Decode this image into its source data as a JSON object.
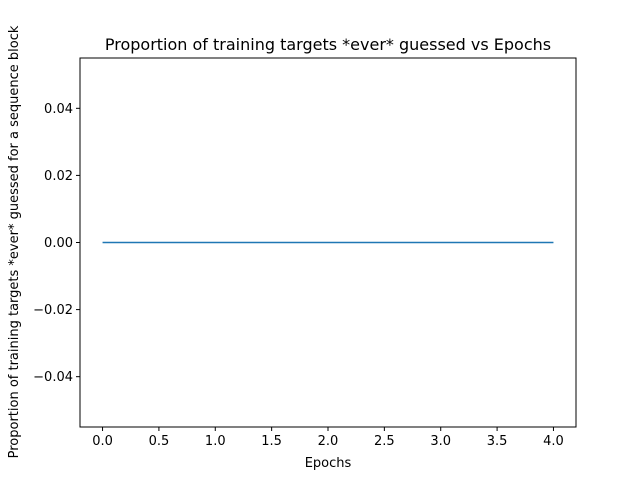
{
  "chart_data": {
    "type": "line",
    "title": "Proportion of training targets *ever* guessed vs Epochs",
    "xlabel": "Epochs",
    "ylabel": "Proportion of training targets *ever* guessed for a sequence block",
    "xlim": [
      -0.2,
      4.2
    ],
    "ylim": [
      -0.055,
      0.055
    ],
    "xticks": [
      0.0,
      0.5,
      1.0,
      1.5,
      2.0,
      2.5,
      3.0,
      3.5,
      4.0
    ],
    "xtick_labels": [
      "0.0",
      "0.5",
      "1.0",
      "1.5",
      "2.0",
      "2.5",
      "3.0",
      "3.5",
      "4.0"
    ],
    "yticks": [
      -0.04,
      -0.02,
      0.0,
      0.02,
      0.04
    ],
    "ytick_labels": [
      "−0.04",
      "−0.02",
      "0.00",
      "0.02",
      "0.04"
    ],
    "grid": false,
    "legend": "none",
    "series": [
      {
        "x": [
          0,
          1,
          2,
          3,
          4
        ],
        "y": [
          0,
          0,
          0,
          0,
          0
        ],
        "color": "#1f77b4"
      }
    ]
  }
}
